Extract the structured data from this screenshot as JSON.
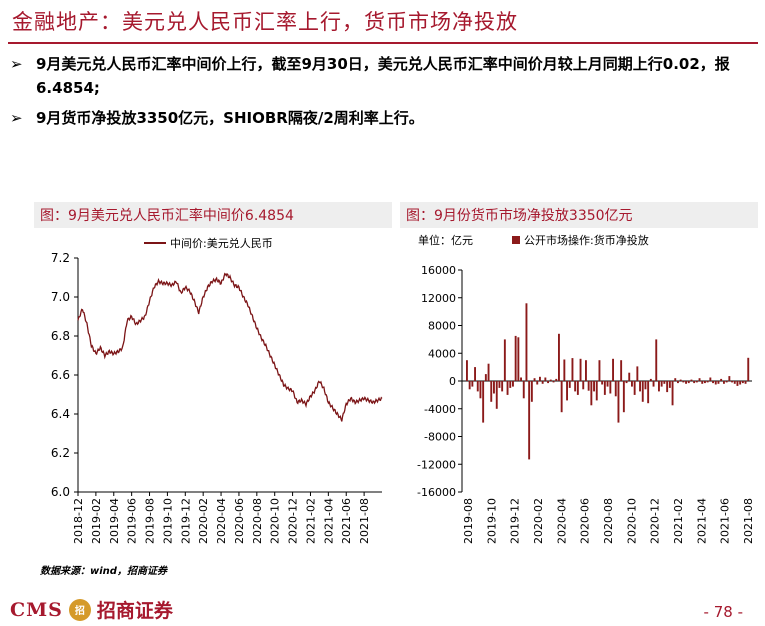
{
  "page_title": "金融地产：美元兑人民币汇率上行，货币市场净投放",
  "bullets": [
    "9月美元兑人民币汇率中间价上行，截至9月30日，美元兑人民币汇率中间价月较上月同期上行0.02，报6.4854;",
    "9月货币净投放3350亿元，SHIOBR隔夜/2周利率上行。"
  ],
  "bullet_marker": "➢",
  "source": "数据来源：wind，招商证券",
  "footer": {
    "cms": "CMS",
    "badge": "招",
    "company": "招商证券",
    "page": "- 78 -"
  },
  "chart_data": [
    {
      "type": "line",
      "caption": "图：9月美元兑人民币汇率中间价6.4854",
      "legend": "中间价:美元兑人民币",
      "line_color": "#7b1416",
      "ylim": [
        6.0,
        7.2
      ],
      "yticks": [
        "7.2",
        "7.0",
        "6.8",
        "6.6",
        "6.4",
        "6.2",
        "6.0"
      ],
      "xticks": [
        "2018-12",
        "2019-02",
        "2019-04",
        "2019-06",
        "2019-08",
        "2019-10",
        "2019-12",
        "2020-02",
        "2020-04",
        "2020-06",
        "2020-08",
        "2020-10",
        "2020-12",
        "2021-02",
        "2021-04",
        "2021-06",
        "2021-08"
      ],
      "x_months": [
        0,
        0.5,
        1,
        1.5,
        2,
        2.5,
        3,
        3.5,
        4,
        4.5,
        5,
        5.5,
        6,
        6.5,
        7,
        7.5,
        8,
        8.5,
        9,
        9.5,
        10,
        10.5,
        11,
        11.5,
        12,
        12.5,
        13,
        13.5,
        14,
        14.5,
        15,
        15.5,
        16,
        16.5,
        17,
        17.5,
        18,
        18.5,
        19,
        19.5,
        20,
        20.5,
        21,
        21.5,
        22,
        22.5,
        23,
        23.5,
        24,
        24.5,
        25,
        25.5,
        26,
        26.5,
        27,
        27.5,
        28,
        28.5,
        29,
        29.5,
        30,
        30.5,
        31,
        31.5,
        32,
        32.5,
        33,
        33.5,
        34
      ],
      "values": [
        6.88,
        6.94,
        6.86,
        6.75,
        6.71,
        6.74,
        6.7,
        6.72,
        6.71,
        6.72,
        6.74,
        6.88,
        6.9,
        6.86,
        6.88,
        6.9,
        6.98,
        7.05,
        7.08,
        7.07,
        7.07,
        7.06,
        7.08,
        7.02,
        7.05,
        7.03,
        6.98,
        6.92,
        7.0,
        7.05,
        7.08,
        7.09,
        7.07,
        7.12,
        7.1,
        7.06,
        7.05,
        7.0,
        6.96,
        6.9,
        6.84,
        6.79,
        6.75,
        6.7,
        6.65,
        6.6,
        6.55,
        6.53,
        6.52,
        6.46,
        6.47,
        6.45,
        6.49,
        6.52,
        6.57,
        6.53,
        6.46,
        6.43,
        6.4,
        6.37,
        6.45,
        6.48,
        6.46,
        6.47,
        6.48,
        6.47,
        6.46,
        6.47,
        6.48
      ]
    },
    {
      "type": "bar",
      "caption": "图：9月份货币市场净投放3350亿元",
      "unit": "单位：亿元",
      "legend": "公开市场操作:货币净投放",
      "bar_color": "#8b1a1a",
      "ylim": [
        -16000,
        16000
      ],
      "yticks": [
        "16000",
        "12000",
        "8000",
        "4000",
        "0",
        "-4000",
        "-8000",
        "-12000",
        "-16000"
      ],
      "xticks": [
        "2019-08",
        "2019-10",
        "2019-12",
        "2020-02",
        "2020-04",
        "2020-06",
        "2020-08",
        "2020-10",
        "2020-12",
        "2021-02",
        "2021-04",
        "2021-06",
        "2021-08"
      ],
      "values": [
        3000,
        -1200,
        -800,
        2000,
        -1500,
        -2500,
        -6000,
        1000,
        2500,
        -3000,
        -1800,
        -4000,
        -1000,
        -1500,
        6000,
        -2000,
        -1000,
        -800,
        6500,
        6300,
        500,
        -2500,
        11200,
        -11300,
        -3000,
        400,
        -500,
        600,
        -400,
        500,
        -300,
        200,
        -200,
        300,
        6800,
        -4500,
        3100,
        -2800,
        -1000,
        3300,
        -1500,
        -2000,
        3200,
        -1200,
        3000,
        -1400,
        -3500,
        -1500,
        -2800,
        3000,
        -500,
        -2000,
        -800,
        -1800,
        3200,
        -2200,
        -6000,
        3000,
        -4500,
        -300,
        1200,
        -800,
        -2000,
        2100,
        -1500,
        -3000,
        -1200,
        -3200,
        300,
        -800,
        6000,
        -1500,
        -800,
        -400,
        -1600,
        -1000,
        -3500,
        400,
        -300,
        200,
        -200,
        -400,
        -300,
        200,
        -300,
        -200,
        400,
        -400,
        -300,
        -200,
        500,
        -300,
        -500,
        -400,
        300,
        -400,
        -200,
        700,
        -200,
        -400,
        -700,
        -500,
        -300,
        -400,
        3350
      ]
    }
  ]
}
